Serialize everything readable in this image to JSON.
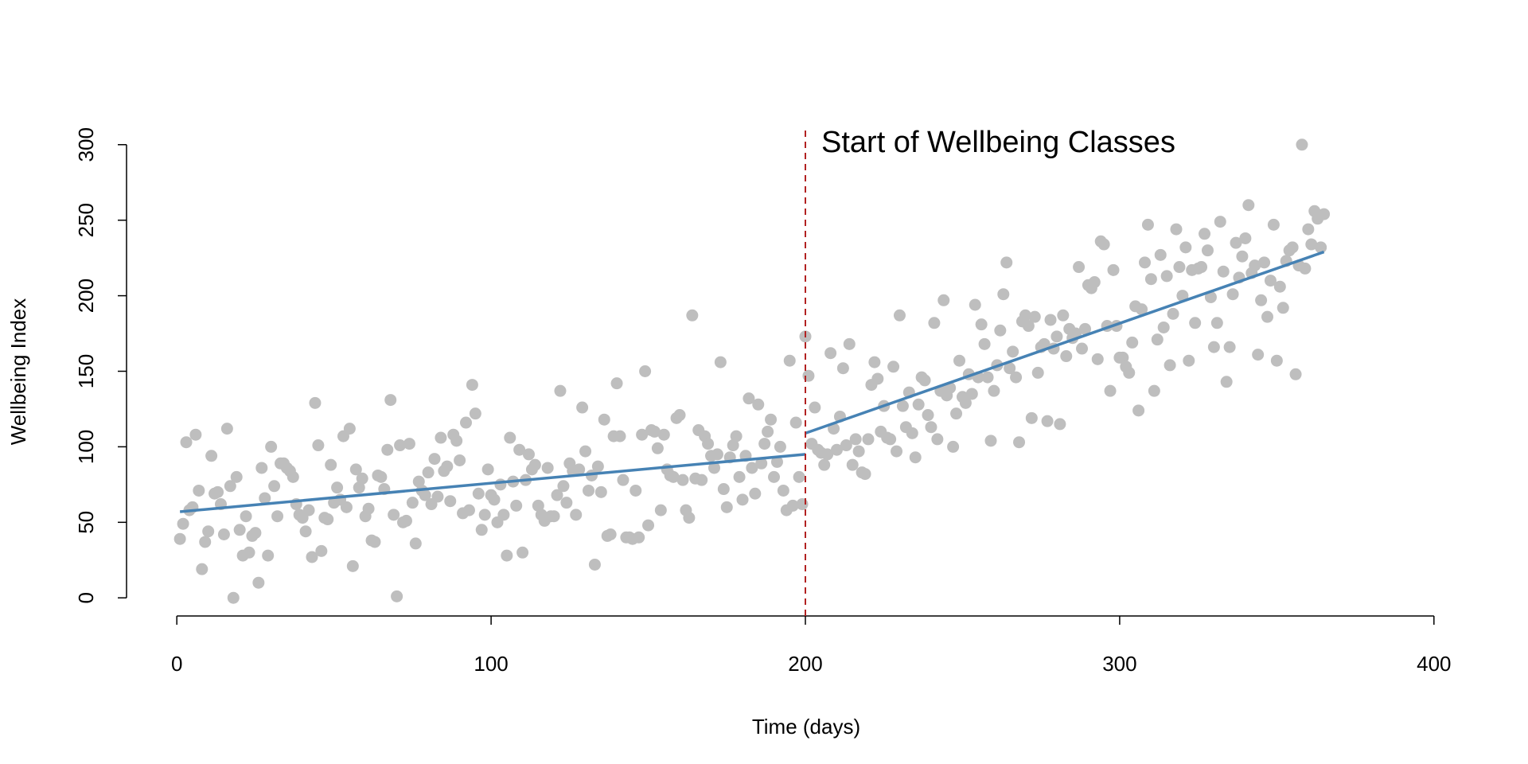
{
  "chart_data": {
    "type": "scatter",
    "xlabel": "Time (days)",
    "ylabel": "Wellbeing Index",
    "xlim": [
      -16,
      416
    ],
    "ylim": [
      -12,
      312
    ],
    "xticks": [
      0,
      100,
      200,
      300,
      400
    ],
    "yticks": [
      0,
      50,
      100,
      150,
      200,
      250,
      300
    ],
    "color": "#bebebe",
    "x": [
      1,
      2,
      3,
      4,
      5,
      6,
      7,
      8,
      9,
      10,
      11,
      12,
      13,
      14,
      15,
      16,
      17,
      18,
      19,
      20,
      21,
      22,
      23,
      24,
      25,
      26,
      27,
      28,
      29,
      30,
      31,
      32,
      33,
      34,
      35,
      36,
      37,
      38,
      39,
      40,
      41,
      42,
      43,
      44,
      45,
      46,
      47,
      48,
      49,
      50,
      51,
      52,
      53,
      54,
      55,
      56,
      57,
      58,
      59,
      60,
      61,
      62,
      63,
      64,
      65,
      66,
      67,
      68,
      69,
      70,
      71,
      72,
      73,
      74,
      75,
      76,
      77,
      78,
      79,
      80,
      81,
      82,
      83,
      84,
      85,
      86,
      87,
      88,
      89,
      90,
      91,
      92,
      93,
      94,
      95,
      96,
      97,
      98,
      99,
      100,
      101,
      102,
      103,
      104,
      105,
      106,
      107,
      108,
      109,
      110,
      111,
      112,
      113,
      114,
      115,
      116,
      117,
      118,
      119,
      120,
      121,
      122,
      123,
      124,
      125,
      126,
      127,
      128,
      129,
      130,
      131,
      132,
      133,
      134,
      135,
      136,
      137,
      138,
      139,
      140,
      141,
      142,
      143,
      144,
      145,
      146,
      147,
      148,
      149,
      150,
      151,
      152,
      153,
      154,
      155,
      156,
      157,
      158,
      159,
      160,
      161,
      162,
      163,
      164,
      165,
      166,
      167,
      168,
      169,
      170,
      171,
      172,
      173,
      174,
      175,
      176,
      177,
      178,
      179,
      180,
      181,
      182,
      183,
      184,
      185,
      186,
      187,
      188,
      189,
      190,
      191,
      192,
      193,
      194,
      195,
      196,
      197,
      198,
      199,
      200,
      201,
      202,
      203,
      204,
      205,
      206,
      207,
      208,
      209,
      210,
      211,
      212,
      213,
      214,
      215,
      216,
      217,
      218,
      219,
      220,
      221,
      222,
      223,
      224,
      225,
      226,
      227,
      228,
      229,
      230,
      231,
      232,
      233,
      234,
      235,
      236,
      237,
      238,
      239,
      240,
      241,
      242,
      243,
      244,
      245,
      246,
      247,
      248,
      249,
      250,
      251,
      252,
      253,
      254,
      255,
      256,
      257,
      258,
      259,
      260,
      261,
      262,
      263,
      264,
      265,
      266,
      267,
      268,
      269,
      270,
      271,
      272,
      273,
      274,
      275,
      276,
      277,
      278,
      279,
      280,
      281,
      282,
      283,
      284,
      285,
      286,
      287,
      288,
      289,
      290,
      291,
      292,
      293,
      294,
      295,
      296,
      297,
      298,
      299,
      300,
      301,
      302,
      303,
      304,
      305,
      306,
      307,
      308,
      309,
      310,
      311,
      312,
      313,
      314,
      315,
      316,
      317,
      318,
      319,
      320,
      321,
      322,
      323,
      324,
      325,
      326,
      327,
      328,
      329,
      330,
      331,
      332,
      333,
      334,
      335,
      336,
      337,
      338,
      339,
      340,
      341,
      342,
      343,
      344,
      345,
      346,
      347,
      348,
      349,
      350,
      351,
      352,
      353,
      354,
      355,
      356,
      357,
      358,
      359,
      360,
      361,
      362,
      363,
      364,
      365
    ],
    "values": [
      39,
      49,
      103,
      58,
      60,
      108,
      71,
      19,
      37,
      44,
      94,
      69,
      70,
      62,
      42,
      112,
      74,
      0,
      80,
      45,
      28,
      54,
      30,
      41,
      43,
      10,
      86,
      66,
      28,
      100,
      74,
      54,
      89,
      89,
      86,
      84,
      80,
      62,
      55,
      53,
      44,
      58,
      27,
      129,
      101,
      31,
      53,
      52,
      88,
      63,
      73,
      65,
      107,
      60,
      112,
      21,
      85,
      73,
      79,
      54,
      59,
      38,
      37,
      81,
      80,
      72,
      98,
      131,
      55,
      1,
      101,
      50,
      51,
      102,
      63,
      36,
      77,
      71,
      68,
      83,
      62,
      92,
      67,
      106,
      84,
      87,
      64,
      108,
      104,
      91,
      56,
      116,
      58,
      141,
      122,
      69,
      45,
      55,
      85,
      68,
      65,
      50,
      75,
      55,
      28,
      106,
      77,
      61,
      98,
      30,
      78,
      95,
      85,
      88,
      61,
      55,
      51,
      86,
      54,
      54,
      68,
      137,
      74,
      63,
      89,
      84,
      55,
      85,
      126,
      97,
      71,
      81,
      22,
      87,
      70,
      118,
      41,
      42,
      107,
      142,
      107,
      78,
      40,
      40,
      39,
      71,
      40,
      108,
      150,
      48,
      111,
      110,
      99,
      58,
      108,
      85,
      81,
      80,
      119,
      121,
      78,
      58,
      53,
      187,
      79,
      111,
      78,
      107,
      102,
      94,
      86,
      95,
      156,
      72,
      60,
      93,
      101,
      107,
      80,
      65,
      94,
      132,
      86,
      69,
      128,
      89,
      102,
      110,
      118,
      80,
      90,
      100,
      71,
      58,
      157,
      61,
      116,
      80,
      62,
      173,
      147,
      102,
      126,
      98,
      96,
      88,
      95,
      162,
      112,
      98,
      120,
      152,
      101,
      168,
      88,
      105,
      97,
      83,
      82,
      105,
      141,
      156,
      145,
      110,
      127,
      106,
      105,
      153,
      97,
      187,
      127,
      113,
      136,
      109,
      93,
      128,
      146,
      144,
      121,
      113,
      182,
      105,
      137,
      197,
      134,
      139,
      100,
      122,
      157,
      133,
      129,
      148,
      135,
      194,
      146,
      181,
      168,
      146,
      104,
      137,
      154,
      177,
      201,
      222,
      152,
      163,
      146,
      103,
      183,
      187,
      180,
      119,
      186,
      149,
      166,
      168,
      117,
      184,
      165,
      173,
      115,
      187,
      160,
      178,
      172,
      175,
      219,
      165,
      178,
      207,
      205,
      209,
      158,
      236,
      234,
      180,
      137,
      217,
      180,
      159,
      159,
      153,
      149,
      169,
      193,
      124,
      191,
      222,
      247,
      211,
      137,
      171,
      227,
      179,
      213,
      154,
      188,
      244,
      219,
      200,
      232,
      157,
      217,
      182,
      218,
      219,
      241,
      230,
      199,
      166,
      182,
      249,
      216,
      143,
      166,
      201,
      235,
      212,
      226,
      238,
      260,
      215,
      220,
      161,
      197,
      222,
      186,
      210,
      247,
      157,
      206,
      192,
      223,
      230,
      232,
      148,
      220,
      300,
      218,
      244,
      234,
      256,
      251,
      232,
      254
    ],
    "fit_color": "#4682b4",
    "fit_lines": [
      {
        "x": [
          1,
          200
        ],
        "values": [
          57,
          95
        ]
      },
      {
        "x": [
          200,
          365
        ],
        "values": [
          109,
          229
        ]
      }
    ],
    "vline": {
      "x": 200,
      "color": "#b22222",
      "label": "Start of Wellbeing Classes"
    }
  }
}
